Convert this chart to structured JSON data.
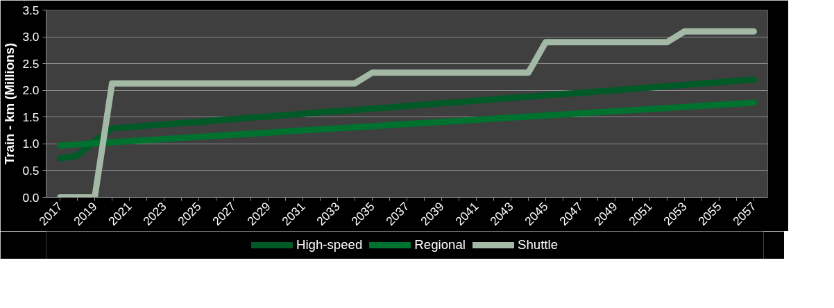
{
  "chart_data": {
    "type": "line",
    "ylabel": "Train - km (Millions)",
    "categories": [
      "2017",
      null,
      "2019",
      null,
      "2021",
      null,
      "2023",
      null,
      "2025",
      null,
      "2027",
      null,
      "2029",
      null,
      "2031",
      null,
      "2033",
      null,
      "2035",
      null,
      "2037",
      null,
      "2039",
      null,
      "2041",
      null,
      "2043",
      null,
      "2045",
      null,
      "2047",
      null,
      "2049",
      null,
      "2051",
      null,
      "2053",
      null,
      "2055",
      null,
      "2057"
    ],
    "series": [
      {
        "name": "High-speed",
        "color": "#005a28",
        "values": [
          0.73,
          0.78,
          1.05,
          1.29,
          1.31,
          1.34,
          1.36,
          1.39,
          1.41,
          1.44,
          1.46,
          1.49,
          1.51,
          1.54,
          1.56,
          1.59,
          1.61,
          1.63,
          1.66,
          1.68,
          1.71,
          1.73,
          1.76,
          1.78,
          1.81,
          1.83,
          1.86,
          1.88,
          1.91,
          1.93,
          1.95,
          1.98,
          2.0,
          2.03,
          2.05,
          2.08,
          2.1,
          2.13,
          2.15,
          2.18,
          2.2
        ]
      },
      {
        "name": "Regional",
        "color": "#00722f",
        "values": [
          0.97,
          0.99,
          1.01,
          1.03,
          1.05,
          1.07,
          1.09,
          1.11,
          1.13,
          1.15,
          1.17,
          1.19,
          1.21,
          1.23,
          1.25,
          1.27,
          1.29,
          1.31,
          1.33,
          1.35,
          1.37,
          1.39,
          1.41,
          1.43,
          1.45,
          1.47,
          1.49,
          1.51,
          1.53,
          1.55,
          1.57,
          1.59,
          1.61,
          1.63,
          1.65,
          1.67,
          1.69,
          1.71,
          1.73,
          1.75,
          1.77
        ]
      },
      {
        "name": "Shuttle",
        "color": "#a3b9a6",
        "values": [
          0,
          0,
          0,
          2.13,
          2.13,
          2.13,
          2.13,
          2.13,
          2.13,
          2.13,
          2.13,
          2.13,
          2.13,
          2.13,
          2.13,
          2.13,
          2.13,
          2.13,
          2.33,
          2.33,
          2.33,
          2.33,
          2.33,
          2.33,
          2.33,
          2.33,
          2.33,
          2.33,
          2.9,
          2.9,
          2.9,
          2.9,
          2.9,
          2.9,
          2.9,
          2.9,
          3.1,
          3.1,
          3.1,
          3.1,
          3.1
        ]
      }
    ],
    "ylim": [
      0,
      3.5
    ],
    "yticks": [
      {
        "value": 0,
        "label": "0.0"
      },
      {
        "value": 0.5,
        "label": "0.5"
      },
      {
        "value": 1,
        "label": "1.0"
      },
      {
        "value": 1.5,
        "label": "1.5"
      },
      {
        "value": 2,
        "label": "2.0"
      },
      {
        "value": 2.5,
        "label": "2.5"
      },
      {
        "value": 3,
        "label": "3.0"
      },
      {
        "value": 3.5,
        "label": "3.5"
      }
    ],
    "grid": "y",
    "legend": "bottom",
    "marker": "none",
    "line_style": "solid"
  }
}
